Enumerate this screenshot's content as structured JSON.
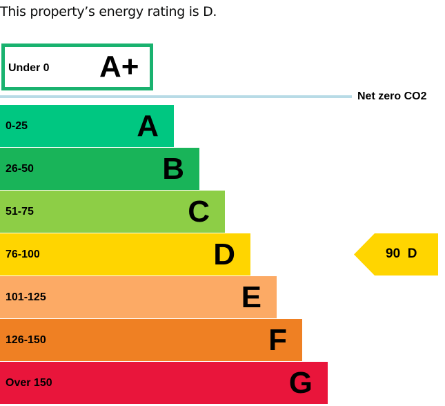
{
  "intro": "This property’s energy rating is D.",
  "top_band": {
    "range": "Under 0",
    "letter": "A+",
    "color": "#19b26f"
  },
  "net_zero": {
    "label": "Net zero CO2",
    "color": "#b8dbe6"
  },
  "bands": [
    {
      "range": "0-25",
      "letter": "A",
      "color": "#00c781"
    },
    {
      "range": "26-50",
      "letter": "B",
      "color": "#19b459"
    },
    {
      "range": "51-75",
      "letter": "C",
      "color": "#8dce46"
    },
    {
      "range": "76-100",
      "letter": "D",
      "color": "#ffd500"
    },
    {
      "range": "101-125",
      "letter": "E",
      "color": "#fcaa65"
    },
    {
      "range": "126-150",
      "letter": "F",
      "color": "#ef8023"
    },
    {
      "range": "Over 150",
      "letter": "G",
      "color": "#e9153b"
    }
  ],
  "current": {
    "score": "90",
    "letter": "D",
    "label": "90  D",
    "color": "#ffd500"
  }
}
